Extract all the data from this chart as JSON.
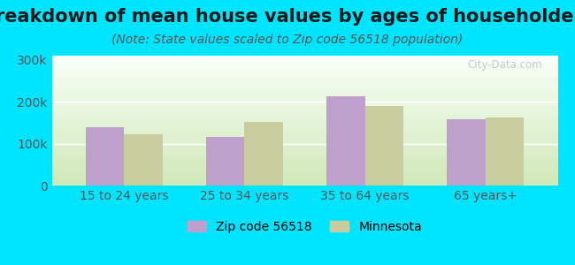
{
  "title": "Breakdown of mean house values by ages of householders",
  "subtitle": "(Note: State values scaled to Zip code 56518 population)",
  "categories": [
    "15 to 24 years",
    "25 to 34 years",
    "35 to 64 years",
    "65 years+"
  ],
  "zip_values": [
    140000,
    115000,
    212000,
    158000
  ],
  "mn_values": [
    122000,
    152000,
    190000,
    163000
  ],
  "zip_color": "#bf9fcc",
  "mn_color": "#c8cc9f",
  "background_outer": "#00e5ff",
  "background_inner_top": "#f8fff8",
  "background_inner_bottom": "#d0e8b8",
  "ylim": [
    0,
    310000
  ],
  "yticks": [
    0,
    100000,
    200000,
    300000
  ],
  "ytick_labels": [
    "0",
    "100k",
    "200k",
    "300k"
  ],
  "zip_label": "Zip code 56518",
  "mn_label": "Minnesota",
  "title_fontsize": 15,
  "subtitle_fontsize": 10,
  "tick_fontsize": 10,
  "legend_fontsize": 10,
  "bar_width": 0.32,
  "watermark": "City-Data.com"
}
